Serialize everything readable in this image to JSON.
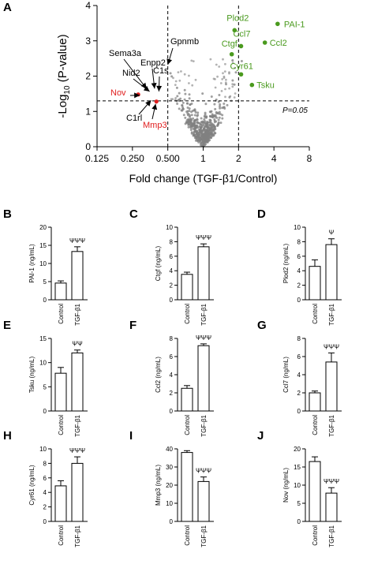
{
  "colors": {
    "green": "#4a9a1e",
    "red": "#e02020",
    "grey": "#808080",
    "black": "#000000"
  },
  "chart_data": [
    {
      "panel": "A",
      "type": "scatter",
      "xlabel": "Fold change (TGF-β1/Control)",
      "ylabel_prefix": "-Log",
      "ylabel_sub": "10",
      "ylabel_suffix": " (P-value)",
      "xscale": "log2",
      "xlim": [
        0.125,
        8
      ],
      "ylim": [
        0,
        4
      ],
      "xticks": [
        0.125,
        0.25,
        0.5,
        1,
        2,
        4,
        8
      ],
      "xtick_labels": [
        "0.125",
        "0.250",
        "0.500",
        "1",
        "2",
        "4",
        "8"
      ],
      "yticks": [
        0,
        1,
        2,
        3,
        4
      ],
      "ytick_labels": [
        "0",
        "1",
        "2",
        "3",
        "4"
      ],
      "threshold_y": 1.3,
      "threshold_label": "P=0.05",
      "threshold_x": [
        0.5,
        2
      ],
      "up_genes": [
        {
          "name": "Plod2",
          "x": 1.85,
          "y": 3.3
        },
        {
          "name": "PAI-1",
          "x": 4.3,
          "y": 3.48
        },
        {
          "name": "Ccl7",
          "x": 2.1,
          "y": 2.85
        },
        {
          "name": "Ctgf",
          "x": 1.75,
          "y": 2.62
        },
        {
          "name": "Ccl2",
          "x": 3.35,
          "y": 2.95
        },
        {
          "name": "Cyr61",
          "x": 2.1,
          "y": 2.05
        },
        {
          "name": "Tsku",
          "x": 2.6,
          "y": 1.75
        }
      ],
      "down_genes_red": [
        {
          "name": "Nov",
          "x": 0.28,
          "y": 1.48
        },
        {
          "name": "Mmp3",
          "x": 0.4,
          "y": 1.28
        }
      ],
      "annotated_genes": [
        {
          "name": "Sema3a",
          "x": 0.33,
          "y": 1.6
        },
        {
          "name": "Enpp2",
          "x": 0.38,
          "y": 1.58
        },
        {
          "name": "Nid2",
          "x": 0.35,
          "y": 1.52
        },
        {
          "name": "C1s",
          "x": 0.42,
          "y": 1.5
        },
        {
          "name": "Gpnmb",
          "x": 0.5,
          "y": 2.28
        },
        {
          "name": "C1rl",
          "x": 0.36,
          "y": 1.38
        }
      ]
    },
    {
      "panel": "B",
      "type": "bar",
      "ylabel": "PAI-1 (ng/mL)",
      "categories": [
        "Control",
        "TGF-β1"
      ],
      "values": [
        4.6,
        13.3
      ],
      "errors": [
        0.6,
        1.3
      ],
      "ylim": [
        0,
        20
      ],
      "yticks": [
        0,
        5,
        10,
        15,
        20
      ],
      "significance": "ΨΨΨ"
    },
    {
      "panel": "C",
      "type": "bar",
      "ylabel": "Ctgf (ng/mL)",
      "categories": [
        "Control",
        "TGF-β1"
      ],
      "values": [
        3.5,
        7.3
      ],
      "errors": [
        0.3,
        0.4
      ],
      "ylim": [
        0,
        10
      ],
      "yticks": [
        0,
        2,
        4,
        6,
        8,
        10
      ],
      "significance": "ΨΨΨ"
    },
    {
      "panel": "D",
      "type": "bar",
      "ylabel": "Plod2 (ng/mL)",
      "categories": [
        "Control",
        "TGF-β1"
      ],
      "values": [
        4.6,
        7.6
      ],
      "errors": [
        0.9,
        0.8
      ],
      "ylim": [
        0,
        10
      ],
      "yticks": [
        0,
        2,
        4,
        6,
        8,
        10
      ],
      "significance": "Ψ"
    },
    {
      "panel": "E",
      "type": "bar",
      "ylabel": "Tsku (ng/mL)",
      "categories": [
        "Control",
        "TGF-β1"
      ],
      "values": [
        7.8,
        12.0
      ],
      "errors": [
        1.2,
        0.6
      ],
      "ylim": [
        0,
        15
      ],
      "yticks": [
        0,
        5,
        10,
        15
      ],
      "significance": "ΨΨ"
    },
    {
      "panel": "F",
      "type": "bar",
      "ylabel": "Ccl2 (ng/mL)",
      "categories": [
        "Control",
        "TGF-β1"
      ],
      "values": [
        2.5,
        7.2
      ],
      "errors": [
        0.3,
        0.2
      ],
      "ylim": [
        0,
        8
      ],
      "yticks": [
        0,
        2,
        4,
        6,
        8
      ],
      "significance": "ΨΨΨ"
    },
    {
      "panel": "G",
      "type": "bar",
      "ylabel": "Ccl7 (ng/mL)",
      "categories": [
        "Control",
        "TGF-β1"
      ],
      "values": [
        2.0,
        5.4
      ],
      "errors": [
        0.2,
        1.0
      ],
      "ylim": [
        0,
        8
      ],
      "yticks": [
        0,
        2,
        4,
        6,
        8
      ],
      "significance": "ΨΨΨ"
    },
    {
      "panel": "H",
      "type": "bar",
      "ylabel": "Cyr61 (ng/mL)",
      "categories": [
        "Control",
        "TGF-β1"
      ],
      "values": [
        4.9,
        8.0
      ],
      "errors": [
        0.7,
        0.9
      ],
      "ylim": [
        0,
        10
      ],
      "yticks": [
        0,
        2,
        4,
        6,
        8,
        10
      ],
      "significance": "ΨΨΨ"
    },
    {
      "panel": "I",
      "type": "bar",
      "ylabel": "Mmp3 (ng/mL)",
      "categories": [
        "Control",
        "TGF-β1"
      ],
      "values": [
        38.0,
        22.0
      ],
      "errors": [
        1.0,
        2.5
      ],
      "ylim": [
        0,
        40
      ],
      "yticks": [
        0,
        10,
        20,
        30,
        40
      ],
      "significance": "ΨΨΨ"
    },
    {
      "panel": "J",
      "type": "bar",
      "ylabel": "Nov (ng/mL)",
      "categories": [
        "Control",
        "TGF-β1"
      ],
      "values": [
        16.5,
        7.8
      ],
      "errors": [
        1.3,
        1.5
      ],
      "ylim": [
        0,
        20
      ],
      "yticks": [
        0,
        5,
        10,
        15,
        20
      ],
      "significance": "ΨΨΨ"
    }
  ]
}
